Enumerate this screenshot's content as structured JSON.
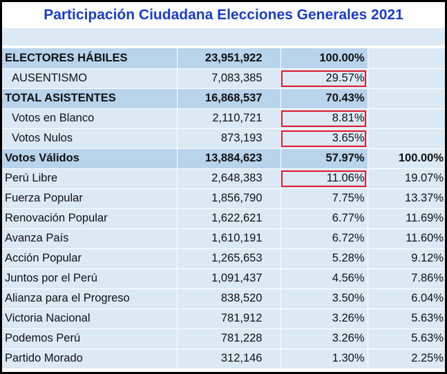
{
  "title": "Participación Ciudadana Elecciones Generales 2021",
  "rows": [
    {
      "label": "ELECTORES HÁBILES",
      "value": "23,951,922",
      "pct": "100.00%",
      "pct_valid": ""
    },
    {
      "label": "AUSENTISMO",
      "value": "7,083,385",
      "pct": "29.57%",
      "pct_valid": ""
    },
    {
      "label": "TOTAL ASISTENTES",
      "value": "16,868,537",
      "pct": "70.43%",
      "pct_valid": ""
    },
    {
      "label": "Votos en Blanco",
      "value": "2,110,721",
      "pct": "8.81%",
      "pct_valid": ""
    },
    {
      "label": "Votos Nulos",
      "value": "873,193",
      "pct": "3.65%",
      "pct_valid": ""
    },
    {
      "label": "Votos Válidos",
      "value": "13,884,623",
      "pct": "57.97%",
      "pct_valid": "100.00%"
    },
    {
      "label": "Perú Libre",
      "value": "2,648,383",
      "pct": "11.06%",
      "pct_valid": "19.07%"
    },
    {
      "label": "Fuerza Popular",
      "value": "1,856,790",
      "pct": "7.75%",
      "pct_valid": "13.37%"
    },
    {
      "label": "Renovación Popular",
      "value": "1,622,621",
      "pct": "6.77%",
      "pct_valid": "11.69%"
    },
    {
      "label": "Avanza País",
      "value": "1,610,191",
      "pct": "6.72%",
      "pct_valid": "11.60%"
    },
    {
      "label": "Acción Popular",
      "value": "1,265,653",
      "pct": "5.28%",
      "pct_valid": "9.12%"
    },
    {
      "label": "Juntos por el Perú",
      "value": "1,091,437",
      "pct": "4.56%",
      "pct_valid": "7.86%"
    },
    {
      "label": "Alianza para el Progreso",
      "value": "838,520",
      "pct": "3.50%",
      "pct_valid": "6.04%"
    },
    {
      "label": "Victoria Nacional",
      "value": "781,912",
      "pct": "3.26%",
      "pct_valid": "5.63%"
    },
    {
      "label": "Podemos Perú",
      "value": "781,228",
      "pct": "3.26%",
      "pct_valid": "5.63%"
    },
    {
      "label": "Partido Morado",
      "value": "312,146",
      "pct": "1.30%",
      "pct_valid": "2.25%"
    }
  ],
  "highlight_color": "#e0182a"
}
